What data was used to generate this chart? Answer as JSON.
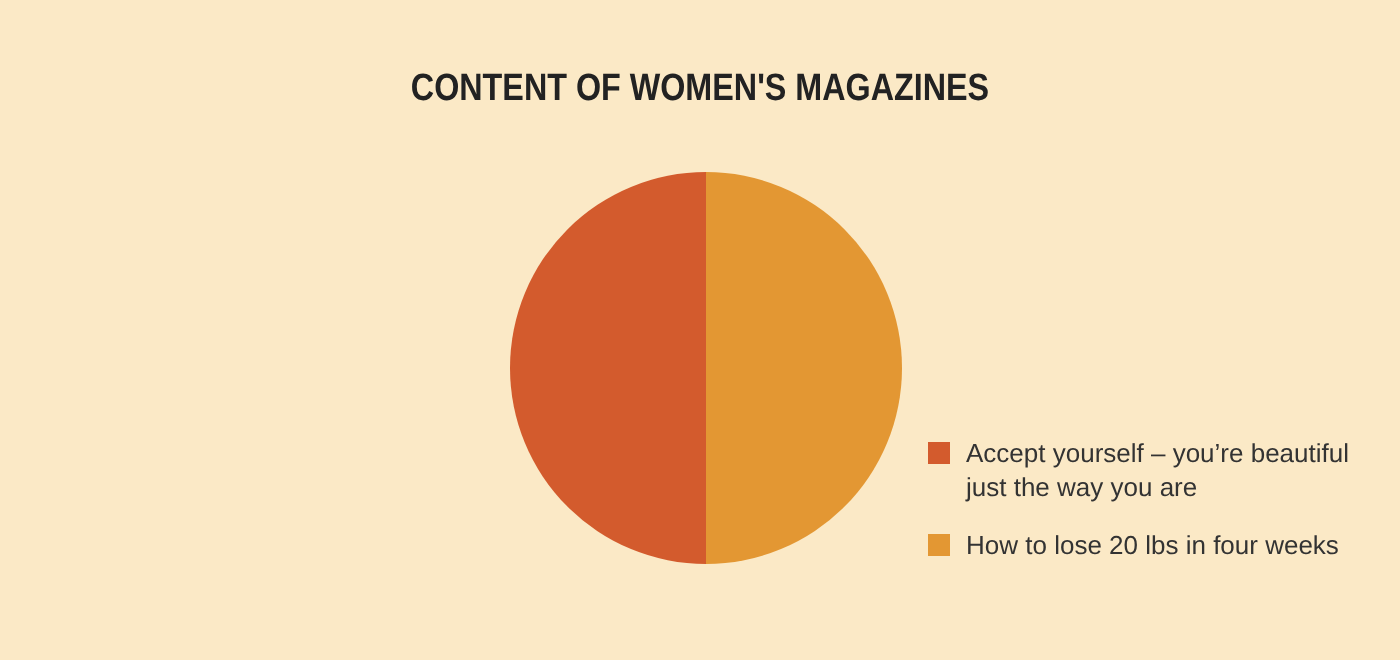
{
  "chart_data": {
    "type": "pie",
    "title": "CONTENT OF WOMEN'S MAGAZINES",
    "categories": [
      "Accept yourself – you’re beautiful just the way you are",
      "How to lose 20 lbs in four weeks"
    ],
    "values": [
      50,
      50
    ],
    "colors": [
      "#d35b2d",
      "#e39733"
    ],
    "legend": "bottom right"
  }
}
